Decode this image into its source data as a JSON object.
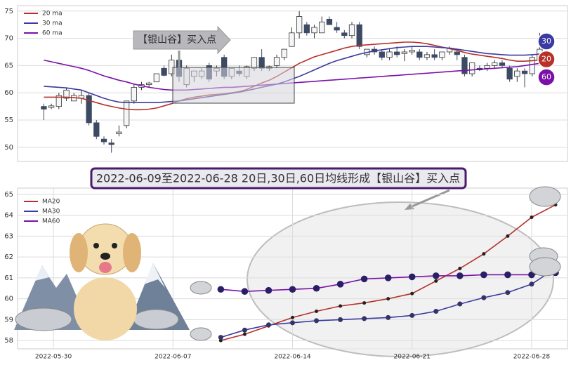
{
  "chart_data": [
    {
      "type": "candlestick",
      "annotation": "【银山谷】买入点",
      "badges": [
        "30",
        "20",
        "60"
      ],
      "up_color": "#f4f6f8",
      "down_color": "#3d4a63",
      "open": [
        57.5,
        57.3,
        57.5,
        59,
        58.5,
        59,
        59.5,
        54.5,
        51.5,
        50.8,
        52.5,
        54,
        58.5,
        61,
        61.5,
        62,
        64.5,
        63.5,
        66,
        61.5,
        63,
        63,
        65,
        64,
        66.5,
        63,
        64,
        63,
        64.5,
        66.5,
        64.5,
        65,
        66.5,
        68.5,
        71,
        72.5,
        71,
        71,
        73.5,
        72,
        71,
        70.5,
        72.5,
        67,
        68,
        67.5,
        66.5,
        67.5,
        67.2,
        67.5,
        67.5,
        66.5,
        67,
        66.5,
        67.5,
        67.5,
        66.5,
        63.5,
        64.5,
        64.5,
        65,
        65.5,
        64.5,
        63,
        64,
        63.5,
        66
      ],
      "high": [
        58,
        58,
        60,
        61,
        60,
        60.5,
        60,
        55,
        52,
        51.5,
        54,
        58.5,
        61.5,
        62,
        62,
        63.5,
        65,
        67,
        66.5,
        65,
        64,
        64.5,
        65.5,
        65,
        67,
        64.5,
        65,
        65,
        66.5,
        68,
        65,
        67,
        68,
        72,
        75,
        73,
        72.5,
        74,
        74,
        73,
        71.5,
        73,
        73,
        68,
        68.5,
        68,
        68,
        68.5,
        68,
        68.5,
        68,
        67.5,
        68,
        67.5,
        68.5,
        68,
        67,
        65.5,
        65,
        65.5,
        66,
        66,
        65,
        64.5,
        64.5,
        67,
        71
      ],
      "low": [
        55,
        57,
        57,
        58.5,
        58.5,
        58,
        54,
        51.5,
        50.5,
        49,
        52,
        53.5,
        58,
        60.5,
        61,
        62,
        63,
        63,
        62,
        61,
        62,
        62.5,
        62,
        63,
        62.5,
        62.5,
        63,
        62.5,
        64,
        64,
        64,
        64.5,
        66,
        68.5,
        70,
        70.5,
        70,
        71,
        72.5,
        71,
        70,
        70,
        68,
        66.5,
        67,
        66,
        66,
        66.5,
        65.8,
        67,
        66,
        66,
        66,
        66,
        67,
        66,
        63,
        63,
        64,
        64,
        64.5,
        64.5,
        62,
        62,
        61,
        63,
        65.5
      ],
      "close": [
        57,
        57.6,
        59.5,
        60.5,
        59.5,
        59.5,
        54.5,
        52,
        51,
        50.5,
        52.8,
        58.5,
        61,
        61.5,
        61.8,
        63.5,
        63.2,
        66,
        63,
        64.5,
        64,
        64,
        62.5,
        64.5,
        63,
        64.5,
        63.5,
        64.8,
        66.5,
        64.5,
        64.8,
        66.5,
        68,
        71,
        74,
        71,
        72,
        73,
        72.5,
        71.5,
        70.5,
        72.5,
        68.5,
        68,
        67.5,
        66.5,
        67.5,
        67,
        67.5,
        67.8,
        66.5,
        67,
        66.5,
        67.5,
        68.2,
        67,
        63.5,
        65.5,
        64.2,
        65,
        65.5,
        65,
        62.5,
        64,
        63.5,
        66.5,
        68
      ],
      "series": [
        {
          "name": "20 ma",
          "color": "#b5312a",
          "values": [
            59.2,
            59.2,
            59.2,
            59.2,
            59.1,
            59.0,
            58.6,
            58.2,
            57.8,
            57.5,
            57.2,
            57.0,
            56.9,
            56.9,
            57.0,
            57.2,
            57.6,
            58.0,
            58.5,
            58.9,
            59.2,
            59.4,
            59.6,
            59.7,
            59.8,
            60.0,
            60.2,
            60.6,
            61.2,
            61.8,
            62.3,
            63.0,
            63.8,
            64.6,
            65.4,
            66.0,
            66.6,
            67.0,
            67.4,
            67.8,
            68.2,
            68.5,
            68.7,
            68.8,
            68.9,
            69.0,
            69.1,
            69.2,
            69.3,
            69.3,
            69.2,
            69.0,
            68.7,
            68.4,
            68.1,
            67.8,
            67.4,
            67.1,
            66.9,
            66.7,
            66.5,
            66.3,
            66.0,
            65.8,
            65.8,
            65.9,
            66.0
          ]
        },
        {
          "name": "30 ma",
          "color": "#3a3aa0",
          "values": [
            61.2,
            61.1,
            61.0,
            60.9,
            60.7,
            60.5,
            60.0,
            59.5,
            59.0,
            58.6,
            58.3,
            58.2,
            58.2,
            58.2,
            58.2,
            58.2,
            58.3,
            58.4,
            58.5,
            58.7,
            58.9,
            59.1,
            59.3,
            59.5,
            59.7,
            59.9,
            60.1,
            60.4,
            60.7,
            61.0,
            61.3,
            61.6,
            62.0,
            62.5,
            63.0,
            63.6,
            64.2,
            64.8,
            65.4,
            65.9,
            66.3,
            66.7,
            67.1,
            67.4,
            67.7,
            67.9,
            68.1,
            68.3,
            68.4,
            68.5,
            68.5,
            68.5,
            68.4,
            68.3,
            68.2,
            68.0,
            67.8,
            67.6,
            67.4,
            67.2,
            67.1,
            67.0,
            66.9,
            66.9,
            66.9,
            67.0,
            67.1
          ]
        },
        {
          "name": "60 ma",
          "color": "#7a10a8",
          "values": [
            66.0,
            65.7,
            65.4,
            65.1,
            64.8,
            64.5,
            64.1,
            63.6,
            63.1,
            62.7,
            62.3,
            62.0,
            61.6,
            61.3,
            61.0,
            60.8,
            60.6,
            60.5,
            60.5,
            60.5,
            60.6,
            60.7,
            60.8,
            60.9,
            61.0,
            61.0,
            61.1,
            61.2,
            61.3,
            61.4,
            61.5,
            61.6,
            61.7,
            61.8,
            61.9,
            62.0,
            62.1,
            62.2,
            62.3,
            62.4,
            62.5,
            62.6,
            62.7,
            62.8,
            62.9,
            63.0,
            63.1,
            63.2,
            63.3,
            63.4,
            63.5,
            63.6,
            63.7,
            63.8,
            63.9,
            64.0,
            64.1,
            64.2,
            64.3,
            64.4,
            64.5,
            64.6,
            64.7,
            64.8,
            65.0,
            65.2,
            65.4
          ]
        }
      ],
      "ylim": [
        47.4,
        76.0
      ],
      "yticks": [
        50,
        55,
        60,
        65,
        70,
        75
      ],
      "grid": true,
      "legend": "upper left"
    },
    {
      "type": "line",
      "title": "2022-06-09至2022-06-28 20日,30日,60日均线形成【银山谷】买入点",
      "categories": [
        null,
        "2022-05-30",
        null,
        null,
        null,
        null,
        "2022-06-07",
        null,
        null,
        null,
        null,
        "2022-06-14",
        null,
        null,
        null,
        null,
        "2022-06-21",
        null,
        null,
        null,
        null,
        "2022-06-28",
        null
      ],
      "series": [
        {
          "name": "MA20",
          "color": "#b5312a",
          "values": [
            null,
            null,
            null,
            null,
            null,
            null,
            null,
            null,
            58.0,
            58.3,
            58.7,
            59.1,
            59.4,
            59.65,
            59.8,
            60.0,
            60.25,
            60.85,
            61.45,
            62.15,
            63.0,
            63.9,
            64.5
          ]
        },
        {
          "name": "MA30",
          "color": "#3a3aa0",
          "values": [
            null,
            null,
            null,
            null,
            null,
            null,
            null,
            null,
            58.15,
            58.5,
            58.75,
            58.85,
            58.95,
            59.0,
            59.05,
            59.1,
            59.2,
            59.4,
            59.75,
            60.05,
            60.3,
            60.7,
            61.45
          ]
        },
        {
          "name": "MA60",
          "color": "#7a10a8",
          "values": [
            null,
            null,
            null,
            null,
            null,
            null,
            null,
            null,
            60.45,
            60.35,
            60.4,
            60.45,
            60.5,
            60.7,
            60.95,
            61.0,
            61.05,
            61.1,
            61.1,
            61.15,
            61.15,
            61.15,
            61.25
          ]
        }
      ],
      "ylim": [
        57.6,
        65.3
      ],
      "yticks": [
        58,
        59,
        60,
        61,
        62,
        63,
        64,
        65
      ],
      "grid": true,
      "legend": "upper left"
    }
  ]
}
